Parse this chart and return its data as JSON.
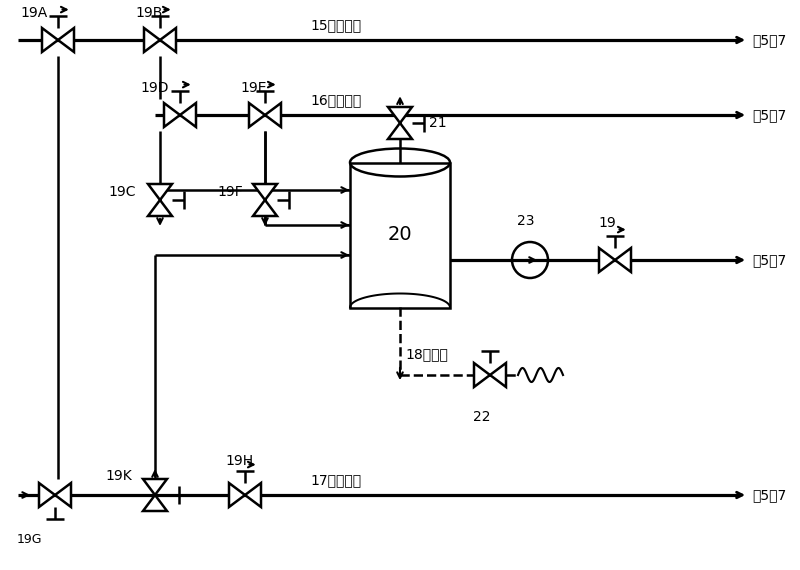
{
  "bg_color": "#ffffff",
  "line_color": "#000000",
  "lw": 1.8,
  "fs": 10,
  "vs": 0.16,
  "labels": {
    "15": "15高炉煤气",
    "16": "16焦炉煤气",
    "17": "17转炉煤气",
    "18": "18凝结水",
    "to57": "至5或7",
    "v19A": "19A",
    "v19B": "19B",
    "v19C": "19C",
    "v19D": "19D",
    "v19E": "19E",
    "v19F": "19F",
    "v19G": "19G",
    "v19H": "19H",
    "v19K": "19K",
    "v19": "19",
    "v20": "20",
    "v21": "21",
    "v22": "22",
    "v23": "23"
  }
}
